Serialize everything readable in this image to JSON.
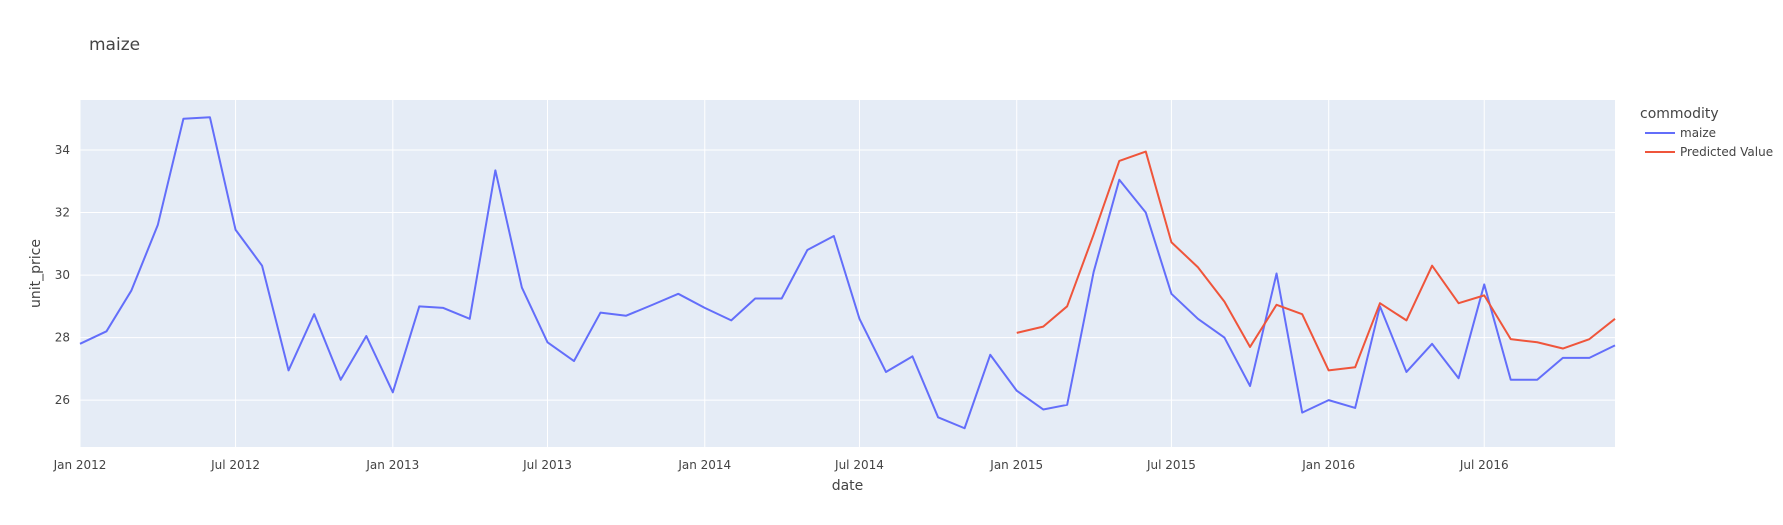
{
  "chart_data": {
    "type": "line",
    "title": "maize",
    "xlabel": "date",
    "ylabel": "unit_price",
    "x_range": [
      "2012-01-01",
      "2016-12-01"
    ],
    "ylim": [
      24.5,
      35.6
    ],
    "x_ticks": [
      {
        "date": "2012-01-01",
        "label": "Jan 2012"
      },
      {
        "date": "2012-07-01",
        "label": "Jul 2012"
      },
      {
        "date": "2013-01-01",
        "label": "Jan 2013"
      },
      {
        "date": "2013-07-01",
        "label": "Jul 2013"
      },
      {
        "date": "2014-01-01",
        "label": "Jan 2014"
      },
      {
        "date": "2014-07-01",
        "label": "Jul 2014"
      },
      {
        "date": "2015-01-01",
        "label": "Jan 2015"
      },
      {
        "date": "2015-07-01",
        "label": "Jul 2015"
      },
      {
        "date": "2016-01-01",
        "label": "Jan 2016"
      },
      {
        "date": "2016-07-01",
        "label": "Jul 2016"
      }
    ],
    "y_ticks": [
      26,
      28,
      30,
      32,
      34
    ],
    "grid": true,
    "legend": {
      "title": "commodity",
      "placement": "right"
    },
    "series": [
      {
        "name": "maize",
        "color": "#636efa",
        "x": [
          "2012-01-01",
          "2012-02-01",
          "2012-03-01",
          "2012-04-01",
          "2012-05-01",
          "2012-06-01",
          "2012-07-01",
          "2012-08-01",
          "2012-09-01",
          "2012-10-01",
          "2012-11-01",
          "2012-12-01",
          "2013-01-01",
          "2013-02-01",
          "2013-03-01",
          "2013-04-01",
          "2013-05-01",
          "2013-06-01",
          "2013-07-01",
          "2013-08-01",
          "2013-09-01",
          "2013-10-01",
          "2013-11-01",
          "2013-12-01",
          "2014-01-01",
          "2014-02-01",
          "2014-03-01",
          "2014-04-01",
          "2014-05-01",
          "2014-06-01",
          "2014-07-01",
          "2014-08-01",
          "2014-09-01",
          "2014-10-01",
          "2014-11-01",
          "2014-12-01",
          "2015-01-01",
          "2015-02-01",
          "2015-03-01",
          "2015-04-01",
          "2015-05-01",
          "2015-06-01",
          "2015-07-01",
          "2015-08-01",
          "2015-09-01",
          "2015-10-01",
          "2015-11-01",
          "2015-12-01",
          "2016-01-01",
          "2016-02-01",
          "2016-03-01",
          "2016-04-01",
          "2016-05-01",
          "2016-06-01",
          "2016-07-01",
          "2016-08-01",
          "2016-09-01",
          "2016-10-01",
          "2016-11-01",
          "2016-12-01"
        ],
        "values": [
          27.8,
          28.2,
          29.5,
          31.6,
          35.0,
          35.05,
          31.45,
          30.3,
          26.95,
          28.75,
          26.65,
          28.05,
          26.25,
          29.0,
          28.95,
          28.6,
          33.35,
          29.6,
          27.85,
          27.25,
          28.8,
          28.7,
          29.05,
          29.4,
          28.95,
          28.55,
          29.25,
          29.25,
          30.8,
          31.25,
          28.6,
          26.9,
          27.4,
          25.45,
          25.1,
          27.45,
          26.3,
          25.7,
          25.85,
          30.1,
          33.05,
          32.0,
          29.4,
          28.6,
          28.0,
          26.45,
          30.05,
          25.6,
          26.0,
          25.75,
          29.0,
          26.9,
          27.8,
          26.7,
          29.7,
          26.65,
          26.65,
          27.35,
          27.35,
          27.75
        ]
      },
      {
        "name": "Predicted Value",
        "color": "#ef553b",
        "x": [
          "2015-01-01",
          "2015-02-01",
          "2015-03-01",
          "2015-04-01",
          "2015-05-01",
          "2015-06-01",
          "2015-07-01",
          "2015-08-01",
          "2015-09-01",
          "2015-10-01",
          "2015-11-01",
          "2015-12-01",
          "2016-01-01",
          "2016-02-01",
          "2016-03-01",
          "2016-04-01",
          "2016-05-01",
          "2016-06-01",
          "2016-07-01",
          "2016-08-01",
          "2016-09-01",
          "2016-10-01",
          "2016-11-01",
          "2016-12-01"
        ],
        "values": [
          28.15,
          28.35,
          29.0,
          31.3,
          33.65,
          33.95,
          31.05,
          30.25,
          29.15,
          27.7,
          29.05,
          28.75,
          26.95,
          27.05,
          29.1,
          28.55,
          30.3,
          29.1,
          29.35,
          27.95,
          27.85,
          27.65,
          27.95,
          28.6
        ]
      }
    ]
  }
}
